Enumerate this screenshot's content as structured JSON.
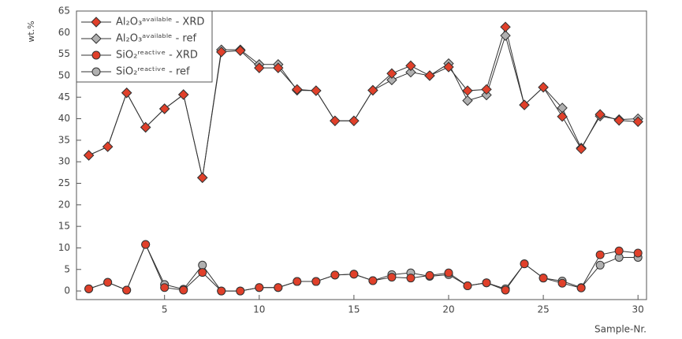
{
  "chart_data": {
    "type": "line",
    "x_label": "Sample-Nr.",
    "y_label": "wt.%",
    "x": [
      1,
      2,
      3,
      4,
      5,
      6,
      7,
      8,
      9,
      10,
      11,
      12,
      13,
      14,
      15,
      16,
      17,
      18,
      19,
      20,
      21,
      22,
      23,
      24,
      25,
      26,
      27,
      28,
      29,
      30
    ],
    "xlim": [
      0.35,
      30.45
    ],
    "xticks": [
      5,
      10,
      15,
      20,
      25,
      30
    ],
    "ylim": [
      -2,
      65
    ],
    "yticks": [
      0,
      5,
      10,
      15,
      20,
      25,
      30,
      35,
      40,
      45,
      50,
      55,
      60,
      65
    ],
    "legend": "top-left",
    "line_color": "#333333",
    "series": [
      {
        "name": "Al₂O₃ᵃᵛᵃⁱˡᵃᵇˡᵉ - XRD",
        "color": "#e0402a",
        "marker": "diamond",
        "values": [
          31.5,
          33.5,
          46,
          38,
          42.3,
          45.6,
          26.3,
          55.5,
          55.8,
          51.8,
          51.8,
          46.8,
          46.5,
          39.5,
          39.5,
          46.6,
          50.5,
          52.3,
          50,
          52,
          46.5,
          46.8,
          61.3,
          43.2,
          47.3,
          40.5,
          33,
          41,
          39.6,
          39.3
        ]
      },
      {
        "name": "Al₂O₃ᵃᵛᵃⁱˡᵃᵇˡᵉ - ref",
        "color": "#b0b0b0",
        "marker": "diamond",
        "values": [
          31.5,
          33.5,
          46,
          38,
          42.3,
          45.6,
          26.3,
          56,
          56,
          52.6,
          52.6,
          46.6,
          46.5,
          39.5,
          39.5,
          46.6,
          49,
          50.8,
          50,
          52.8,
          44.2,
          45.5,
          59.3,
          43.2,
          47.3,
          42.5,
          33.2,
          40.6,
          39.8,
          40
        ]
      },
      {
        "name": "SiO₂ʳᵉᵃᶜᵗⁱᵛᵉ - XRD",
        "color": "#e0402a",
        "marker": "circle",
        "values": [
          0.5,
          2,
          0.2,
          10.8,
          0.8,
          0.2,
          4.3,
          0,
          0,
          0.8,
          0.8,
          2.2,
          2.2,
          3.7,
          3.9,
          2.4,
          3.2,
          3,
          3.6,
          4.2,
          1.2,
          1.9,
          0.2,
          6.3,
          3,
          1.8,
          0.7,
          8.4,
          9.3,
          8.8
        ]
      },
      {
        "name": "SiO₂ʳᵉᵃᶜᵗⁱᵛᵉ - ref",
        "color": "#b0b0b0",
        "marker": "circle",
        "values": [
          0.5,
          2,
          0.2,
          10.8,
          1.5,
          0.4,
          6,
          0,
          0,
          0.8,
          0.8,
          2.2,
          2.2,
          3.7,
          3.9,
          2.4,
          3.8,
          4.2,
          3.4,
          3.8,
          1.2,
          1.9,
          0.5,
          6.3,
          3,
          2.3,
          0.8,
          6,
          7.8,
          7.8
        ]
      }
    ]
  }
}
